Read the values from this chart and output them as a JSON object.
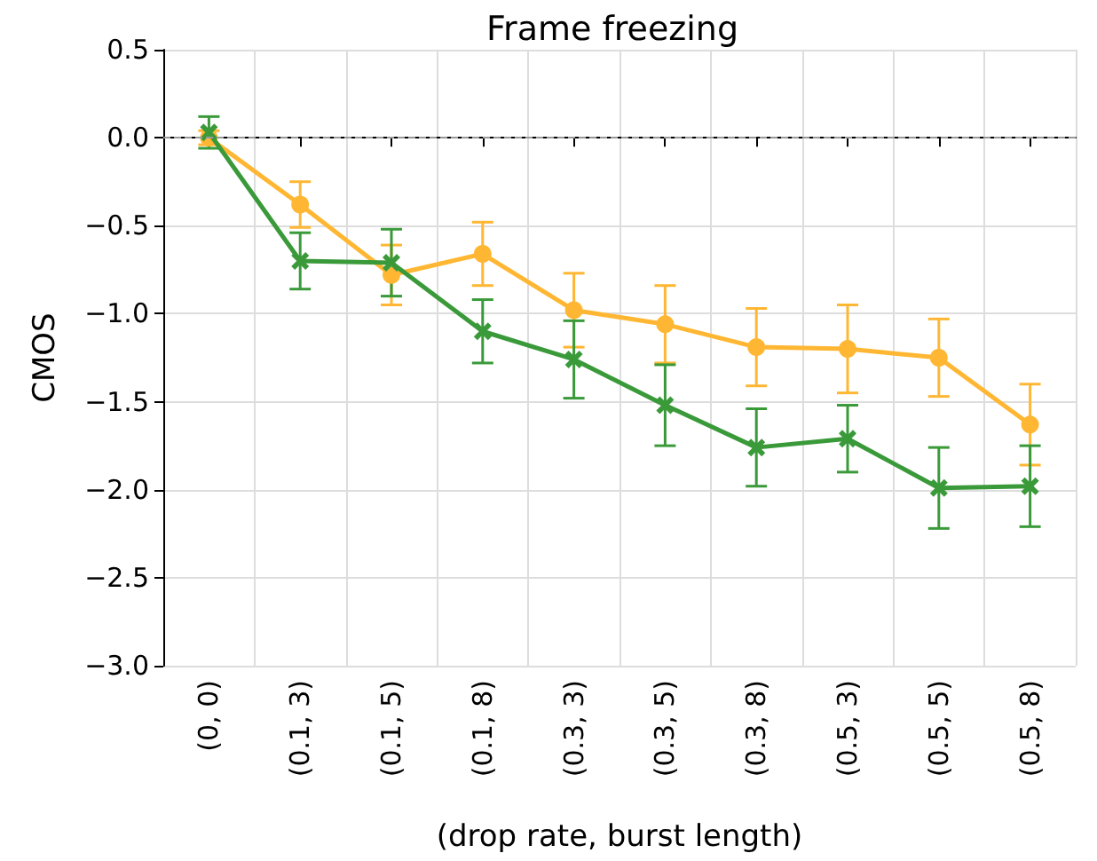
{
  "chart_data": {
    "type": "line",
    "title": "Frame freezing",
    "xlabel": "(drop rate, burst length)",
    "ylabel": "CMOS",
    "categories": [
      "(0, 0)",
      "(0.1, 3)",
      "(0.1, 5)",
      "(0.1, 8)",
      "(0.3, 3)",
      "(0.3, 5)",
      "(0.3, 8)",
      "(0.5, 3)",
      "(0.5, 5)",
      "(0.5, 8)"
    ],
    "series": [
      {
        "color": "#ffb733",
        "marker": "circle",
        "values": [
          0,
          -0.38,
          -0.78,
          -0.66,
          -0.98,
          -1.06,
          -1.19,
          -1.2,
          -1.25,
          -1.63
        ],
        "errors": [
          0.04,
          0.13,
          0.17,
          0.18,
          0.21,
          0.22,
          0.22,
          0.25,
          0.22,
          0.23
        ]
      },
      {
        "color": "#3a9a3a",
        "marker": "cross",
        "values": [
          0.03,
          -0.7,
          -0.71,
          -1.1,
          -1.26,
          -1.52,
          -1.76,
          -1.71,
          -1.99,
          -1.98
        ],
        "errors": [
          0.09,
          0.16,
          0.19,
          0.18,
          0.22,
          0.23,
          0.22,
          0.19,
          0.23,
          0.23
        ]
      }
    ],
    "ylim": [
      -3,
      0.5
    ],
    "yticks": [
      {
        "value": -3,
        "label": "−3.0"
      },
      {
        "value": -2.5,
        "label": "−2.5"
      },
      {
        "value": -2,
        "label": "−2.0"
      },
      {
        "value": -1.5,
        "label": "−1.5"
      },
      {
        "value": -1,
        "label": "−1.0"
      },
      {
        "value": -0.5,
        "label": "−0.5"
      },
      {
        "value": 0,
        "label": "0.0"
      },
      {
        "value": 0.5,
        "label": "0.5"
      }
    ],
    "ref_lines": [
      {
        "axis": "y",
        "value": 0,
        "color": "#999999",
        "line_style": "dashed"
      }
    ],
    "grid": true,
    "line_style": "solid"
  }
}
